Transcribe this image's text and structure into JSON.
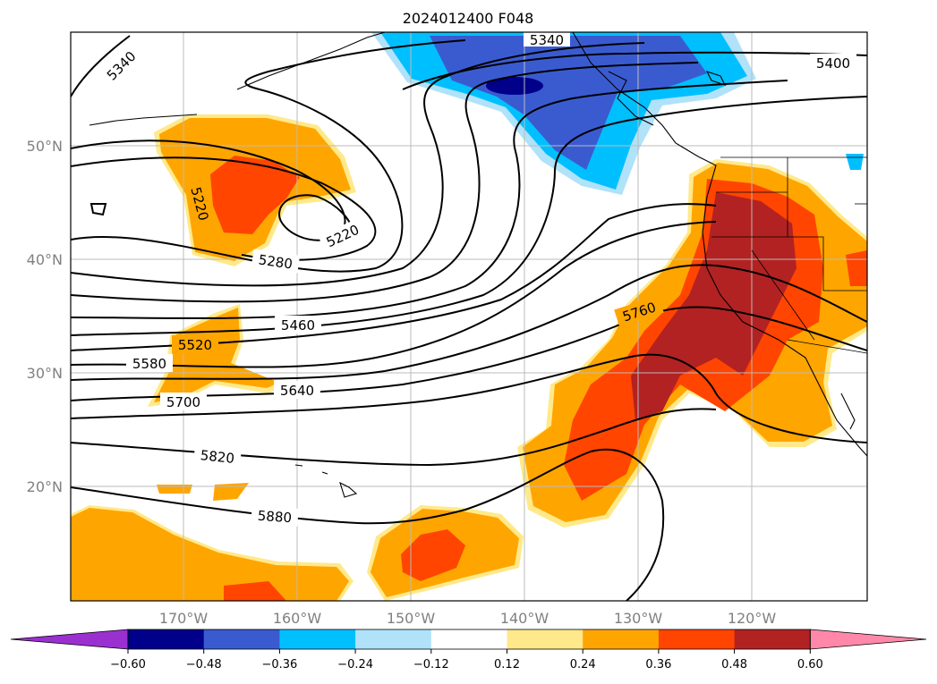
{
  "title": "2024012400 F048",
  "lat_labels": [
    "50°N",
    "40°N",
    "30°N",
    "20°N"
  ],
  "lon_labels": [
    "170°W",
    "160°W",
    "150°W",
    "140°W",
    "130°W",
    "120°W"
  ],
  "contour_labels": [
    "5340",
    "5340",
    "5400",
    "5220",
    "5220",
    "5280",
    "5460",
    "5520",
    "5580",
    "5640",
    "5700",
    "5760",
    "5820",
    "5880"
  ],
  "colorbar": {
    "ticks": [
      "−0.60",
      "−0.48",
      "−0.36",
      "−0.24",
      "−0.12",
      "0.12",
      "0.24",
      "0.36",
      "0.48",
      "0.60"
    ],
    "colors": {
      "under": "#9b30d0",
      "bins": [
        "#00008b",
        "#3a5bd0",
        "#00bfff",
        "#b0e2fa",
        "#ffffff",
        "#ffe98a",
        "#ffa500",
        "#ff4500",
        "#b22222"
      ],
      "over": "#ff88aa"
    }
  }
}
